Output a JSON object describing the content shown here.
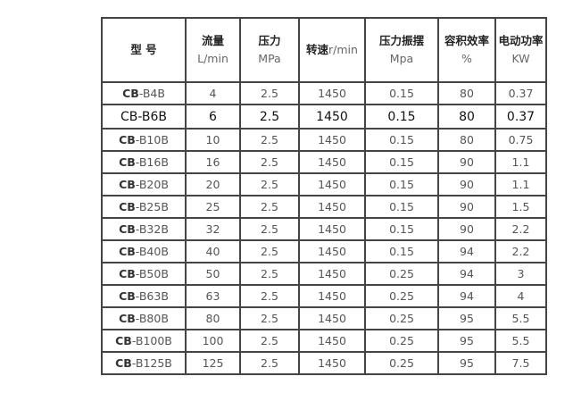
{
  "headers": [
    {
      "title": "型 号",
      "unit": ""
    },
    {
      "title": "流量",
      "unit": "L/min"
    },
    {
      "title": "压力",
      "unit": "MPa"
    },
    {
      "title": "转速",
      "unit": "r/min",
      "inline": true
    },
    {
      "title": "压力振摆",
      "unit": "Mpa"
    },
    {
      "title": "容积效率",
      "unit": "%"
    },
    {
      "title": "电动功率",
      "unit": "KW"
    }
  ],
  "rows": [
    {
      "prefix": "CB",
      "model": "-B4B",
      "flow": "4",
      "pressure": "2.5",
      "speed": "1450",
      "swing": "0.15",
      "efficiency": "80",
      "power": "0.37"
    },
    {
      "prefix": "CB",
      "model": "-B6B",
      "flow": "6",
      "pressure": "2.5",
      "speed": "1450",
      "swing": "0.15",
      "efficiency": "80",
      "power": "0.37",
      "highlight": true
    },
    {
      "prefix": "CB",
      "model": "-B10B",
      "flow": "10",
      "pressure": "2.5",
      "speed": "1450",
      "swing": "0.15",
      "efficiency": "80",
      "power": "0.75"
    },
    {
      "prefix": "CB",
      "model": "-B16B",
      "flow": "16",
      "pressure": "2.5",
      "speed": "1450",
      "swing": "0.15",
      "efficiency": "90",
      "power": "1.1"
    },
    {
      "prefix": "CB",
      "model": "-B20B",
      "flow": "20",
      "pressure": "2.5",
      "speed": "1450",
      "swing": "0.15",
      "efficiency": "90",
      "power": "1.1"
    },
    {
      "prefix": "CB",
      "model": "-B25B",
      "flow": "25",
      "pressure": "2.5",
      "speed": "1450",
      "swing": "0.15",
      "efficiency": "90",
      "power": "1.5"
    },
    {
      "prefix": "CB",
      "model": "-B32B",
      "flow": "32",
      "pressure": "2.5",
      "speed": "1450",
      "swing": "0.15",
      "efficiency": "90",
      "power": "2.2"
    },
    {
      "prefix": "CB",
      "model": "-B40B",
      "flow": "40",
      "pressure": "2.5",
      "speed": "1450",
      "swing": "0.15",
      "efficiency": "94",
      "power": "2.2"
    },
    {
      "prefix": "CB",
      "model": "-B50B",
      "flow": "50",
      "pressure": "2.5",
      "speed": "1450",
      "swing": "0.25",
      "efficiency": "94",
      "power": "3"
    },
    {
      "prefix": "CB",
      "model": "-B63B",
      "flow": "63",
      "pressure": "2.5",
      "speed": "1450",
      "swing": "0.25",
      "efficiency": "94",
      "power": "4"
    },
    {
      "prefix": "CB",
      "model": "-B80B",
      "flow": "80",
      "pressure": "2.5",
      "speed": "1450",
      "swing": "0.25",
      "efficiency": "95",
      "power": "5.5"
    },
    {
      "prefix": "CB",
      "model": "-B100B",
      "flow": "100",
      "pressure": "2.5",
      "speed": "1450",
      "swing": "0.25",
      "efficiency": "95",
      "power": "5.5"
    },
    {
      "prefix": "CB",
      "model": "-B125B",
      "flow": "125",
      "pressure": "2.5",
      "speed": "1450",
      "swing": "0.25",
      "efficiency": "95",
      "power": "7.5"
    }
  ]
}
